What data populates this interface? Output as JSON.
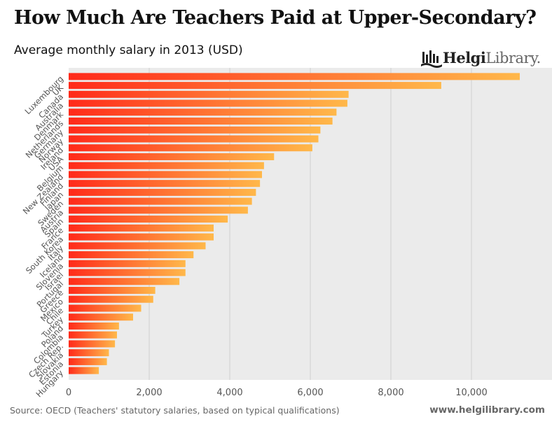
{
  "header": {
    "title": "How Much Are Teachers Paid at Upper-Secondary?",
    "subtitle": "Average monthly salary in 2013 (USD)"
  },
  "logo": {
    "name": "helgilibrary-logo",
    "text_bold": "Helgi",
    "text_light": "Library."
  },
  "footer": {
    "source": "Source: OECD (Teachers' statutory salaries, based on typical qualifications)",
    "url": "www.helgilibrary.com"
  },
  "colors": {
    "bar_start": "#ff2a1a",
    "bar_end": "#ffb84a",
    "plot_bg": "#ebebeb",
    "grid": "#cfcfcf"
  },
  "chart_data": {
    "type": "bar",
    "orientation": "horizontal",
    "title": "How Much Are Teachers Paid at Upper-Secondary?",
    "subtitle": "Average monthly salary in 2013 (USD)",
    "xlim": [
      0,
      11200
    ],
    "xticks": [
      0,
      2000,
      4000,
      6000,
      8000,
      10000
    ],
    "xtick_labels": [
      "0",
      "2,000",
      "4,000",
      "6,000",
      "8,000",
      "10,000"
    ],
    "grid": true,
    "legend": "none",
    "categories": [
      "Luxembourg",
      "UK",
      "Canada",
      "Australia",
      "Denmark",
      "Netherlands",
      "Germany",
      "Norway",
      "Ireland",
      "USA",
      "Belgium",
      "New Zealand",
      "Finland",
      "Japan",
      "Sweden",
      "Austria",
      "Spain",
      "France",
      "South Korea",
      "Italy",
      "Iceland",
      "Slovenia",
      "Israel",
      "Portugal",
      "Greece",
      "Mexico",
      "Chile",
      "Turkey",
      "Poland",
      "Colombia",
      "Czech Rep.",
      "Slovakia",
      "Estonia",
      "Hungary"
    ],
    "values": [
      11200,
      9250,
      6950,
      6920,
      6650,
      6550,
      6250,
      6200,
      6050,
      5100,
      4850,
      4800,
      4750,
      4650,
      4550,
      4450,
      3950,
      3600,
      3600,
      3400,
      3100,
      2900,
      2900,
      2750,
      2150,
      2100,
      1800,
      1600,
      1250,
      1200,
      1150,
      1000,
      950,
      750
    ]
  }
}
